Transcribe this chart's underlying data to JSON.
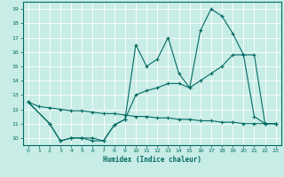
{
  "xlabel": "Humidex (Indice chaleur)",
  "xlim": [
    -0.5,
    23.5
  ],
  "ylim": [
    9.5,
    19.5
  ],
  "xticks": [
    0,
    1,
    2,
    3,
    4,
    5,
    6,
    7,
    8,
    9,
    10,
    11,
    12,
    13,
    14,
    15,
    16,
    17,
    18,
    19,
    20,
    21,
    22,
    23
  ],
  "yticks": [
    10,
    11,
    12,
    13,
    14,
    15,
    16,
    17,
    18,
    19
  ],
  "bg_color": "#c8ece6",
  "line_color": "#006b63",
  "grid_color": "#ffffff",
  "line1_x": [
    0,
    1,
    2,
    3,
    4,
    5,
    6,
    7,
    8,
    9,
    10,
    11,
    12,
    13,
    14,
    15,
    16,
    17,
    18,
    19,
    20,
    21,
    22,
    23
  ],
  "line1_y": [
    12.5,
    12.2,
    12.1,
    12.0,
    11.9,
    11.9,
    11.8,
    11.7,
    11.7,
    11.6,
    11.5,
    11.5,
    11.4,
    11.4,
    11.3,
    11.3,
    11.2,
    11.2,
    11.1,
    11.1,
    11.0,
    11.0,
    11.0,
    11.0
  ],
  "line2_x": [
    0,
    2,
    3,
    4,
    5,
    6,
    7,
    8,
    9,
    10,
    11,
    12,
    13,
    14,
    15,
    16,
    17,
    18,
    19,
    20,
    21,
    22,
    23
  ],
  "line2_y": [
    12.5,
    11.0,
    9.8,
    10.0,
    10.0,
    10.0,
    9.8,
    10.9,
    11.3,
    13.0,
    13.3,
    13.5,
    13.8,
    13.8,
    13.5,
    14.0,
    14.5,
    15.0,
    15.8,
    15.8,
    15.8,
    11.0,
    11.0
  ],
  "line3_x": [
    0,
    2,
    3,
    4,
    5,
    6,
    7,
    8,
    9,
    10,
    11,
    12,
    13,
    14,
    15,
    16,
    17,
    18,
    19,
    20,
    21,
    22,
    23
  ],
  "line3_y": [
    12.5,
    11.0,
    9.8,
    10.0,
    10.0,
    9.8,
    9.8,
    10.9,
    11.3,
    16.5,
    15.0,
    15.5,
    17.0,
    14.5,
    13.5,
    17.5,
    19.0,
    18.5,
    17.3,
    15.8,
    11.5,
    11.0,
    11.0
  ]
}
